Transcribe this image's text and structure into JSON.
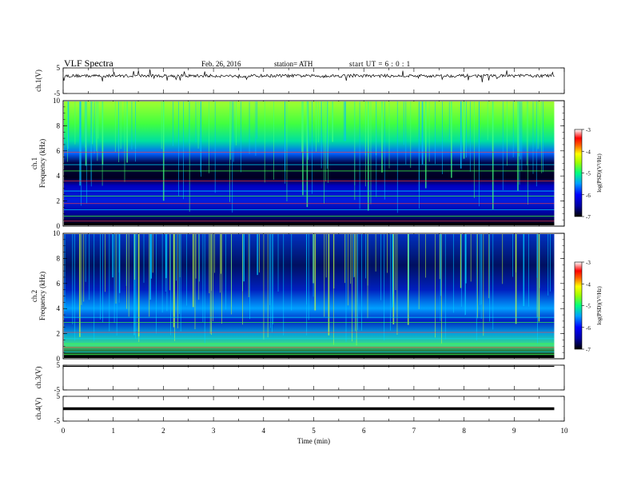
{
  "header": {
    "title": "VLF  Spectra",
    "date": "Feb. 26, 2016",
    "station": "station= ATH",
    "start_ut": "start  UT  =   6  : 0  : 1"
  },
  "chart_data": [
    {
      "type": "line",
      "panel": "ch1-waveform",
      "ylabel": "ch.1(V)",
      "ylim": [
        -5,
        5
      ],
      "yticks": [
        "5",
        "-5"
      ],
      "x_range_min": [
        0,
        9.8
      ],
      "series": [
        {
          "values_description_baseline": 1.9
        }
      ]
    },
    {
      "type": "heatmap",
      "panel": "ch1-spectrogram",
      "ylabel": [
        "ch.1",
        "Frequency  (kHz)"
      ],
      "ylim": [
        0,
        10
      ],
      "yticks": [
        "0",
        "2",
        "4",
        "6",
        "8",
        "10"
      ],
      "colorbar": {
        "label": "log(PSD)(V²/Hz)",
        "ticks": [
          "-3",
          "-4",
          "-5",
          "-6",
          "-7"
        ],
        "range": [
          -7,
          -3
        ]
      }
    },
    {
      "type": "heatmap",
      "panel": "ch2-spectrogram",
      "ylabel": [
        "ch.2",
        "Frequency  (kHz)"
      ],
      "ylim": [
        0,
        10
      ],
      "yticks": [
        "0",
        "2",
        "4",
        "6",
        "8",
        "10"
      ],
      "colorbar": {
        "label": "log(PSD)(V²/Hz)",
        "ticks": [
          "-3",
          "-4",
          "-5",
          "-6",
          "-7"
        ],
        "range": [
          -7,
          -3
        ]
      }
    },
    {
      "type": "line",
      "panel": "ch3-waveform",
      "ylabel": "ch.3(V)",
      "ylim": [
        -5,
        5
      ],
      "yticks": [
        "5",
        "-5"
      ],
      "series": [
        {
          "level": 5
        }
      ]
    },
    {
      "type": "line",
      "panel": "ch4-waveform",
      "ylabel": "ch.4(V)",
      "ylim": [
        -5,
        5
      ],
      "yticks": [
        "5",
        "-5"
      ],
      "series": [
        {
          "level": 0
        }
      ]
    }
  ],
  "xaxis": {
    "label": "Time  (min)",
    "ticks": [
      "0",
      "1",
      "2",
      "3",
      "4",
      "5",
      "6",
      "7",
      "8",
      "9",
      "10"
    ],
    "range": [
      0,
      10
    ],
    "data_end": 9.8
  },
  "colors": {
    "axis": "#000000",
    "spec_dark": "#000000",
    "spec_blue": "#0000ff",
    "spec_cyan": "#00e0ff",
    "spec_green": "#00ff40",
    "spec_yellow": "#ffff00",
    "spec_red": "#ff0000"
  }
}
